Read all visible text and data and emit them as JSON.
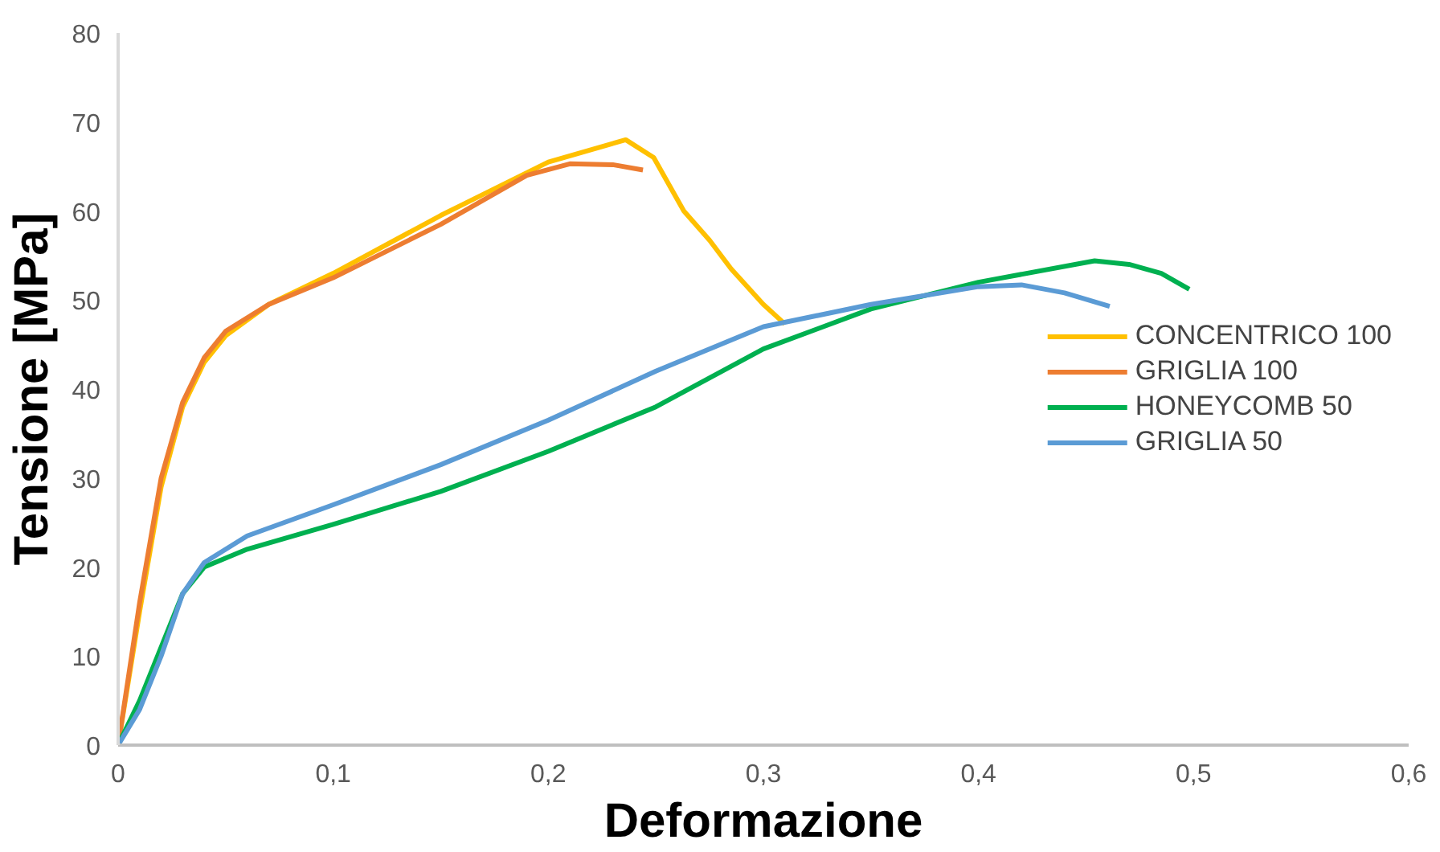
{
  "chart_data": {
    "type": "line",
    "xlabel": "Deformazione",
    "ylabel": "Tensione [MPa]",
    "xlim": [
      0,
      0.6
    ],
    "ylim": [
      0,
      80
    ],
    "xticks": [
      0,
      {
        "value": 0.1,
        "label": "0,1"
      },
      {
        "value": 0.2,
        "label": "0,2"
      },
      {
        "value": 0.3,
        "label": "0,3"
      },
      {
        "value": 0.4,
        "label": "0,4"
      },
      {
        "value": 0.5,
        "label": "0,5"
      },
      {
        "value": 0.6,
        "label": "0,6"
      }
    ],
    "yticks": [
      0,
      10,
      20,
      30,
      40,
      50,
      60,
      70,
      80
    ],
    "grid": false,
    "legend": "right",
    "marker": "none",
    "line_style": "solid",
    "series": [
      {
        "name": "CONCENTRICO 100",
        "color": "#ffc000",
        "x": [
          0,
          0.01,
          0.02,
          0.03,
          0.04,
          0.05,
          0.07,
          0.1,
          0.15,
          0.2,
          0.236,
          0.249,
          0.263,
          0.275,
          0.285,
          0.3,
          0.31
        ],
        "values": [
          0,
          15,
          29,
          38,
          43,
          46,
          49.5,
          53,
          59.5,
          65.5,
          68,
          66,
          60,
          56.7,
          53.5,
          49.5,
          47.3
        ]
      },
      {
        "name": "GRIGLIA 100",
        "color": "#ed7d31",
        "x": [
          0,
          0.01,
          0.02,
          0.03,
          0.04,
          0.05,
          0.07,
          0.1,
          0.15,
          0.19,
          0.21,
          0.23,
          0.244
        ],
        "values": [
          0,
          16,
          30,
          38.5,
          43.5,
          46.5,
          49.5,
          52.5,
          58.5,
          64,
          65.3,
          65.2,
          64.6
        ]
      },
      {
        "name": "HONEYCOMB 50",
        "color": "#00b050",
        "x": [
          0,
          0.01,
          0.02,
          0.03,
          0.04,
          0.06,
          0.1,
          0.15,
          0.2,
          0.25,
          0.3,
          0.35,
          0.4,
          0.454,
          0.47,
          0.485,
          0.498
        ],
        "values": [
          0,
          5,
          11,
          17,
          20,
          22,
          24.8,
          28.5,
          33,
          38,
          44.5,
          49,
          52,
          54.4,
          54,
          53,
          51.2
        ]
      },
      {
        "name": "GRIGLIA 50",
        "color": "#5b9bd5",
        "x": [
          0,
          0.01,
          0.02,
          0.03,
          0.04,
          0.06,
          0.1,
          0.15,
          0.2,
          0.25,
          0.3,
          0.35,
          0.4,
          0.42,
          0.44,
          0.461
        ],
        "values": [
          0,
          4,
          10,
          17,
          20.5,
          23.5,
          27,
          31.5,
          36.5,
          42,
          47,
          49.5,
          51.5,
          51.7,
          50.8,
          49.3
        ]
      }
    ]
  }
}
